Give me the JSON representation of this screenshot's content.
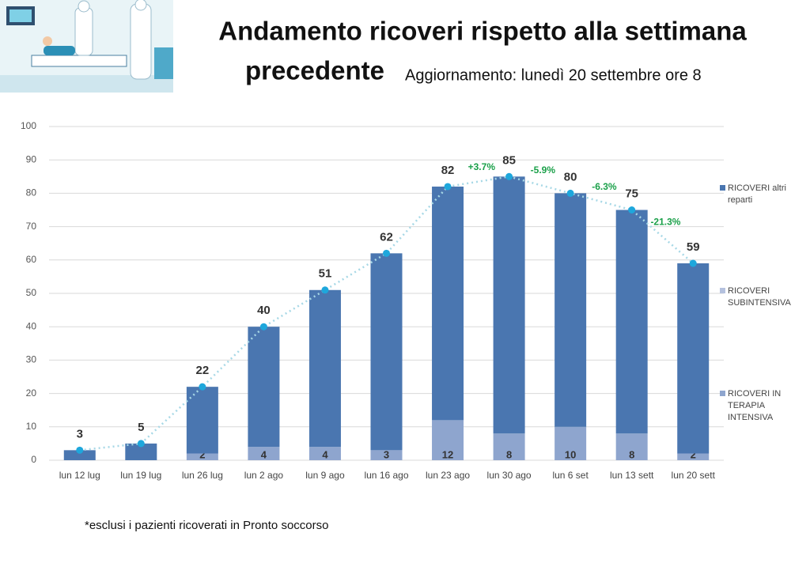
{
  "chart_data": {
    "type": "stacked_bar",
    "title": "Andamento ricoveri rispetto alla settimana",
    "title_line2": "precedente",
    "subtitle": "Aggiornamento: lunedì 20 settembre ore 8",
    "footnote": "*esclusi i pazienti ricoverati in Pronto soccorso",
    "categories": [
      "lun 12 lug",
      "lun 19 lug",
      "lun 26 lug",
      "lun 2 ago",
      "lun 9 ago",
      "lun 16 ago",
      "lun 23 ago",
      "lun 30 ago",
      "lun 6 set",
      "lun 13 sett",
      "lun 20 sett"
    ],
    "series": [
      {
        "name": "RICOVERI IN TERAPIA INTENSIVA",
        "color": "#8ea5ce",
        "values": [
          0,
          0,
          2,
          4,
          4,
          3,
          12,
          8,
          10,
          8,
          2
        ],
        "labels": true
      },
      {
        "name": "RICOVERI SUBINTENSIVA",
        "color": "#b4c1de",
        "values": [
          0,
          0,
          0,
          0,
          0,
          0,
          0,
          0,
          0,
          0,
          0
        ]
      },
      {
        "name": "RICOVERI altri reparti",
        "color": "#4a76b0",
        "values": [
          3,
          5,
          20,
          36,
          47,
          59,
          70,
          77,
          70,
          67,
          57
        ]
      }
    ],
    "totals": [
      3,
      5,
      22,
      40,
      51,
      62,
      82,
      85,
      80,
      75,
      59
    ],
    "totals_color": "#1ea7dc",
    "changes": [
      null,
      null,
      null,
      null,
      null,
      null,
      null,
      "+3.7%",
      "-5.9%",
      "-6.3%",
      "-21.3%"
    ],
    "changes_color": "#1aa049",
    "ylim": [
      0,
      100
    ],
    "yticks": [
      0,
      10,
      20,
      30,
      40,
      50,
      60,
      70,
      80,
      90,
      100
    ],
    "grid": true
  }
}
